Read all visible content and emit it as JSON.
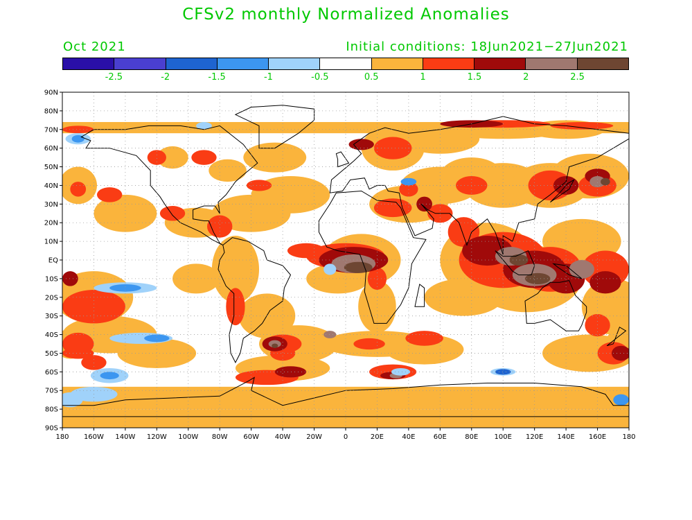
{
  "title": "CFSv2 monthly Normalized Anomalies",
  "valid_month": "Oct 2021",
  "initial_conditions": "Initial conditions: 18Jun2021−27Jun2021",
  "colorbar": {
    "colors": [
      "#2a0fa8",
      "#4a3fd0",
      "#1e64d0",
      "#3c96f0",
      "#a0d2fa",
      "#ffffff",
      "#fab43c",
      "#fa3c14",
      "#a00a0a",
      "#a07870",
      "#6e4632"
    ],
    "labels": [
      "-2.5",
      "-2",
      "-1.5",
      "-1",
      "-0.5",
      "0.5",
      "1",
      "1.5",
      "2",
      "2.5"
    ]
  },
  "axes": {
    "lat_labels": [
      "90N",
      "80N",
      "70N",
      "60N",
      "50N",
      "40N",
      "30N",
      "20N",
      "10N",
      "EQ",
      "10S",
      "20S",
      "30S",
      "40S",
      "50S",
      "60S",
      "70S",
      "80S",
      "90S"
    ],
    "lon_labels": [
      "180",
      "160W",
      "140W",
      "120W",
      "100W",
      "80W",
      "60W",
      "40W",
      "20W",
      "0",
      "20E",
      "40E",
      "60E",
      "80E",
      "100E",
      "120E",
      "140E",
      "160E",
      "180"
    ]
  },
  "colors": {
    "text": "#00c800",
    "ocean": "#ffffff",
    "coast": "#000000",
    "grid": "#9a9a9a"
  }
}
